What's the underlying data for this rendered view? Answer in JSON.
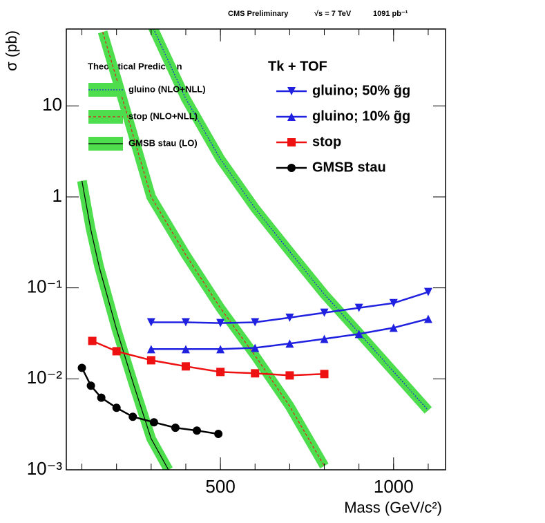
{
  "chart_data": {
    "type": "line",
    "log_y": true,
    "header": [
      "CMS Preliminary",
      "√s = 7 TeV",
      "1091 pb⁻¹"
    ],
    "x_label": "Mass (GeV/c²)",
    "y_label": "σ (pb)",
    "xlim": [
      55,
      1150
    ],
    "xticks": [
      500,
      1000
    ],
    "x_minor_ticks": [
      100,
      200,
      300,
      400,
      500,
      600,
      700,
      800,
      900,
      1000,
      1100
    ],
    "ylim": [
      0.001,
      70
    ],
    "yticks": [
      {
        "value": 0.001,
        "label": "10⁻³"
      },
      {
        "value": 0.01,
        "label": "10⁻²"
      },
      {
        "value": 0.1,
        "label": "10⁻¹"
      },
      1,
      10
    ],
    "theory_title": "Theoretical Prediction",
    "theory": [
      {
        "name": "gluino (NLO+NLL)",
        "color": "#2020e0",
        "dash": "2,2",
        "band_color": "#4ddd4d",
        "x": [
          300,
          400,
          500,
          600,
          700,
          800,
          900,
          1000,
          1100
        ],
        "values": [
          80,
          12,
          2.6,
          0.75,
          0.25,
          0.085,
          0.032,
          0.012,
          0.0045
        ]
      },
      {
        "name": "stop   (NLO+NLL)",
        "color": "#e02020",
        "dash": "4,3",
        "band_color": "#4ddd4d",
        "x": [
          160,
          200,
          300,
          400,
          500,
          600,
          700,
          800
        ],
        "values": [
          65,
          20,
          1.0,
          0.23,
          0.06,
          0.018,
          0.005,
          0.0011
        ]
      },
      {
        "name": "GMSB stau   (LO)",
        "color": "#000000",
        "dash": "",
        "band_color": "#4ddd4d",
        "x": [
          100,
          125,
          150,
          200,
          250,
          300,
          350
        ],
        "values": [
          1.5,
          0.45,
          0.17,
          0.035,
          0.0085,
          0.0022,
          0.001
        ]
      }
    ],
    "legend_title": "Tk + TOF",
    "series": [
      {
        "name": "gluino; 50% g̃g",
        "color": "#2020e0",
        "marker": "triangle-down",
        "x": [
          300,
          400,
          500,
          600,
          700,
          800,
          900,
          1000,
          1100
        ],
        "values": [
          0.0418,
          0.0418,
          0.041,
          0.0418,
          0.047,
          0.0533,
          0.0603,
          0.068,
          0.09
        ]
      },
      {
        "name": "gluino; 10% g̃g",
        "color": "#2020e0",
        "marker": "triangle-up",
        "x": [
          300,
          400,
          500,
          600,
          700,
          800,
          900,
          1000,
          1100
        ],
        "values": [
          0.0212,
          0.0212,
          0.0212,
          0.0219,
          0.0244,
          0.0275,
          0.0311,
          0.0364,
          0.0456
        ]
      },
      {
        "name": "stop",
        "color": "#ee1111",
        "marker": "square",
        "x": [
          130,
          200,
          300,
          400,
          500,
          600,
          700,
          800
        ],
        "values": [
          0.0261,
          0.0201,
          0.016,
          0.0137,
          0.0119,
          0.0115,
          0.0109,
          0.0113
        ]
      },
      {
        "name": "GMSB stau",
        "color": "#000000",
        "marker": "circle",
        "x": [
          100,
          126,
          156,
          200,
          247,
          308,
          370,
          432,
          494
        ],
        "values": [
          0.0132,
          0.0084,
          0.0062,
          0.0048,
          0.00383,
          0.00333,
          0.0029,
          0.0027,
          0.00248
        ]
      }
    ]
  }
}
